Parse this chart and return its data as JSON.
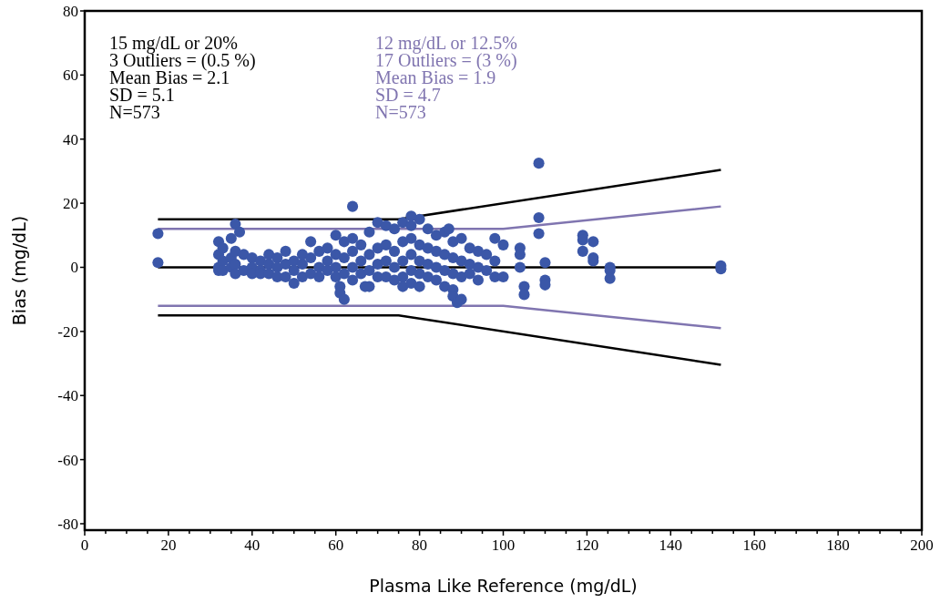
{
  "chart_data": {
    "type": "scatter",
    "xlabel": "Plasma Like Reference (mg/dL)",
    "ylabel": "Bias (mg/dL)",
    "xlim": [
      0,
      200
    ],
    "ylim": [
      -82,
      80
    ],
    "xticks": [
      0,
      {
        "value": 5,
        "label": null
      },
      {
        "value": 10,
        "label": null
      },
      {
        "value": 15,
        "label": null
      },
      20,
      {
        "value": 25,
        "label": null
      },
      {
        "value": 30,
        "label": null
      },
      {
        "value": 35,
        "label": null
      },
      40,
      {
        "value": 45,
        "label": null
      },
      {
        "value": 50,
        "label": null
      },
      {
        "value": 55,
        "label": null
      },
      60,
      {
        "value": 65,
        "label": null
      },
      {
        "value": 70,
        "label": null
      },
      {
        "value": 75,
        "label": null
      },
      80,
      {
        "value": 85,
        "label": null
      },
      {
        "value": 90,
        "label": null
      },
      {
        "value": 95,
        "label": null
      },
      100,
      {
        "value": 105,
        "label": null
      },
      {
        "value": 110,
        "label": null
      },
      {
        "value": 115,
        "label": null
      },
      120,
      {
        "value": 125,
        "label": null
      },
      {
        "value": 130,
        "label": null
      },
      {
        "value": 135,
        "label": null
      },
      140,
      {
        "value": 145,
        "label": null
      },
      {
        "value": 150,
        "label": null
      },
      {
        "value": 155,
        "label": null
      },
      160,
      {
        "value": 165,
        "label": null
      },
      {
        "value": 170,
        "label": null
      },
      {
        "value": 175,
        "label": null
      },
      180,
      {
        "value": 185,
        "label": null
      },
      {
        "value": 190,
        "label": null
      },
      {
        "value": 195,
        "label": null
      },
      200
    ],
    "yticks": [
      -80,
      -60,
      -40,
      -20,
      0,
      20,
      40,
      60,
      80
    ],
    "grid": false,
    "marker": "circle",
    "annotations": [
      "15 mg/dL or 20%",
      "3 Outliers = (0.5 %)",
      "Mean Bias = 2.1",
      "SD = 5.1",
      "N=573",
      "12 mg/dL or 12.5%",
      "17 Outliers = (3 %)",
      "Mean Bias = 1.9",
      "SD = 4.7",
      "N=573"
    ],
    "series": [
      {
        "color": "#3b57a8",
        "x": [
          32,
          32,
          32,
          32,
          33,
          33,
          33,
          35,
          35,
          35,
          36,
          36,
          36,
          38,
          38,
          40,
          40,
          40,
          42,
          42,
          42,
          44,
          44,
          44,
          46,
          46,
          46,
          48,
          48,
          48,
          50,
          50,
          50,
          52,
          52,
          52,
          54,
          54,
          54,
          56,
          56,
          56,
          58,
          58,
          58,
          60,
          60,
          60,
          60,
          62,
          62,
          62,
          64,
          64,
          64,
          64,
          66,
          66,
          66,
          68,
          68,
          68,
          68,
          70,
          70,
          70,
          70,
          72,
          72,
          72,
          72,
          74,
          74,
          74,
          74,
          76,
          76,
          76,
          76,
          76,
          78,
          78,
          78,
          78,
          78,
          80,
          80,
          80,
          80,
          80,
          82,
          82,
          82,
          82,
          84,
          84,
          84,
          84,
          86,
          86,
          86,
          86,
          88,
          88,
          88,
          88,
          90,
          90,
          90,
          92,
          92,
          92,
          94,
          94,
          94,
          96,
          96,
          98,
          98,
          98,
          17.5,
          17.5,
          64,
          108.5,
          108.5,
          108.5,
          105,
          105,
          110,
          110,
          110,
          119,
          119,
          119,
          121.5,
          121.5,
          121.5,
          125.5,
          125.5,
          125.5,
          152,
          152,
          104,
          104,
          104,
          61,
          61,
          62,
          67,
          78,
          87,
          36,
          37,
          88,
          89,
          90,
          100,
          100
        ],
        "values": [
          8,
          4,
          0,
          -1,
          6,
          2,
          -1,
          9,
          3,
          0,
          5,
          1,
          -2,
          4,
          -1,
          3,
          0,
          -2,
          2,
          -1,
          -2,
          4,
          1,
          -2,
          3,
          0,
          -3,
          5,
          1,
          -3,
          2,
          -1,
          -5,
          4,
          1,
          -3,
          8,
          3,
          -2,
          5,
          0,
          -3,
          6,
          2,
          -1,
          10,
          4,
          0,
          -3,
          8,
          3,
          -2,
          9,
          5,
          0,
          -4,
          7,
          2,
          -2,
          11,
          4,
          -1,
          -6,
          14,
          6,
          1,
          -3,
          13,
          7,
          2,
          -3,
          12,
          5,
          0,
          -4,
          14,
          8,
          2,
          -3,
          -6,
          13,
          9,
          4,
          -1,
          -5,
          15,
          7,
          2,
          -2,
          -6,
          12,
          6,
          1,
          -3,
          10,
          5,
          0,
          -4,
          11,
          4,
          -1,
          -6,
          8,
          3,
          -2,
          -7,
          9,
          2,
          -3,
          6,
          1,
          -2,
          5,
          0,
          -4,
          4,
          -1,
          9,
          2,
          -3,
          10.5,
          1.5,
          19,
          32.5,
          15.5,
          10.5,
          -6,
          -8.5,
          1.5,
          -4,
          -5.5,
          10,
          8.5,
          5,
          8,
          3,
          2,
          0,
          -1,
          -3.5,
          0.5,
          -0.5,
          6,
          4,
          0,
          -6,
          -8,
          -10,
          -6,
          16,
          12,
          13.5,
          11,
          -9,
          -11,
          -10,
          7,
          -3
        ]
      },
      {
        "type": "line",
        "color": "#000000",
        "marker": "none",
        "x": [
          17.5,
          75,
          152
        ],
        "values": [
          15,
          15,
          30.4
        ]
      },
      {
        "type": "line",
        "color": "#000000",
        "marker": "none",
        "x": [
          17.5,
          75,
          152
        ],
        "values": [
          -15,
          -15,
          -30.4
        ]
      },
      {
        "type": "line",
        "color": "#000000",
        "marker": "none",
        "x": [
          17.5,
          152
        ],
        "values": [
          0,
          0
        ]
      },
      {
        "type": "line",
        "color": "#8075b0",
        "marker": "none",
        "x": [
          17.5,
          100,
          152
        ],
        "values": [
          12,
          12,
          19
        ]
      },
      {
        "type": "line",
        "color": "#8075b0",
        "marker": "none",
        "x": [
          17.5,
          100,
          152
        ],
        "values": [
          -12,
          -12,
          -19
        ]
      }
    ]
  }
}
